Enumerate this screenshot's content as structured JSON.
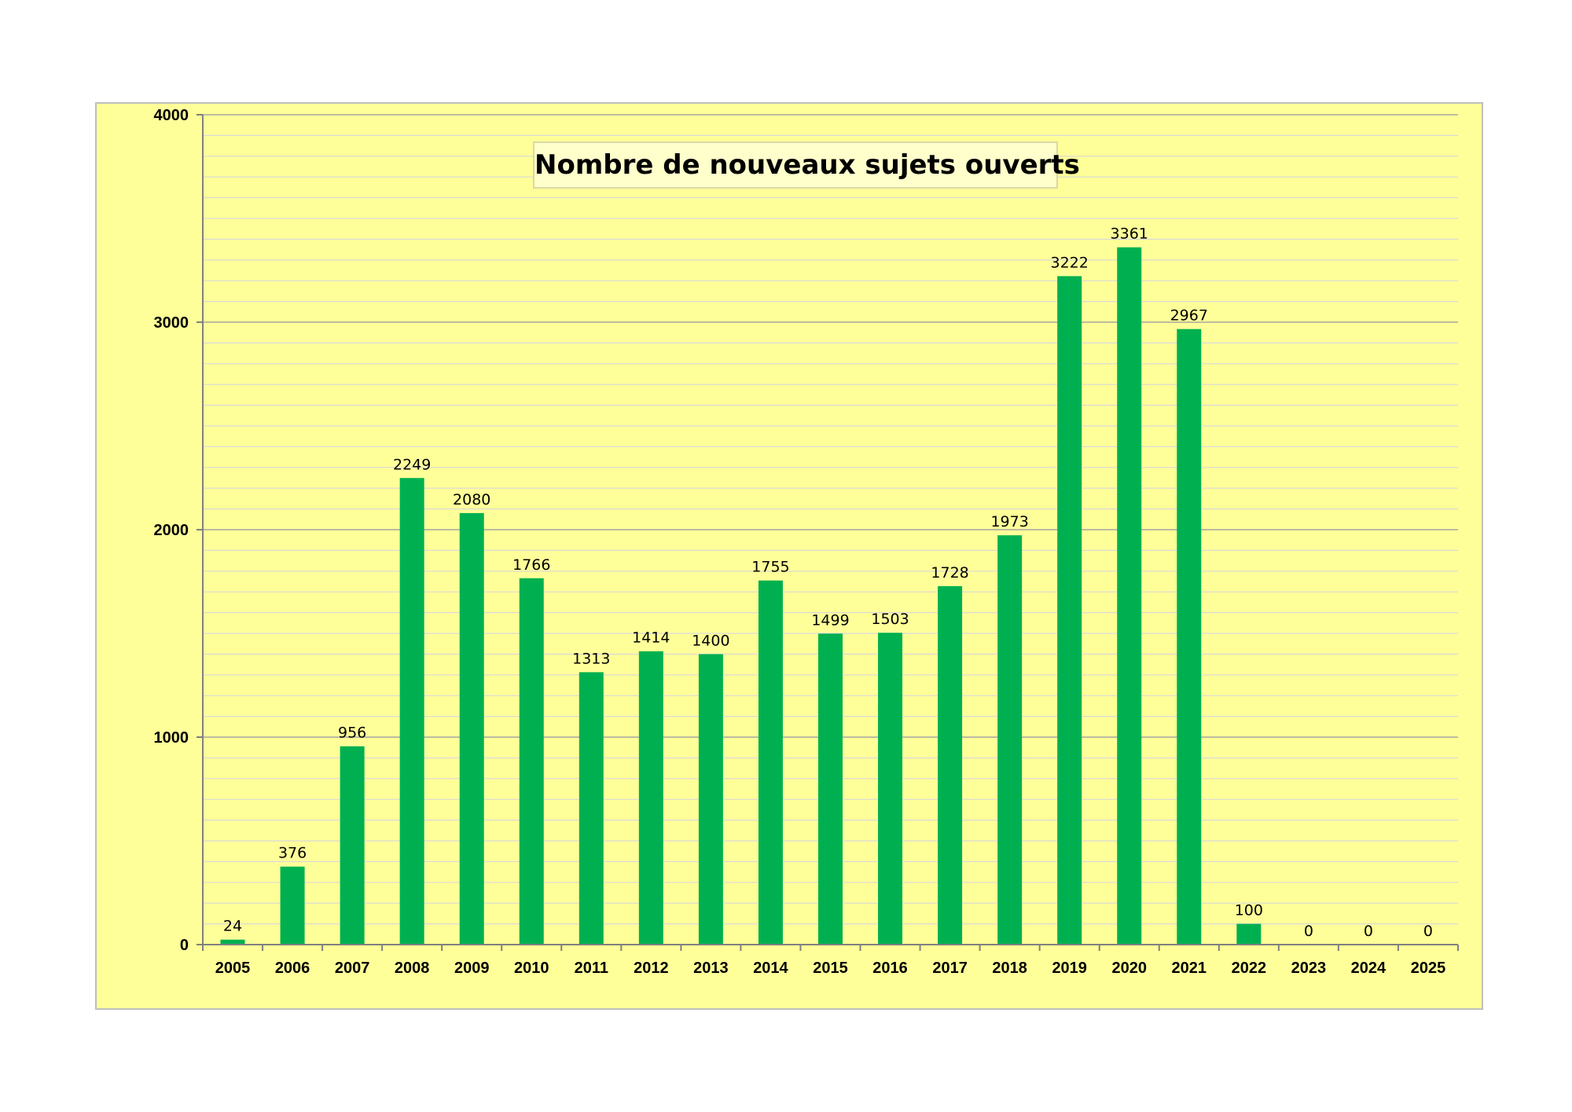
{
  "chart_data": {
    "type": "bar",
    "title": "Nombre de nouveaux sujets ouverts",
    "xlabel": "",
    "ylabel": "",
    "categories": [
      "2005",
      "2006",
      "2007",
      "2008",
      "2009",
      "2010",
      "2011",
      "2012",
      "2013",
      "2014",
      "2015",
      "2016",
      "2017",
      "2018",
      "2019",
      "2020",
      "2021",
      "2022",
      "2023",
      "2024",
      "2025"
    ],
    "values": [
      24,
      376,
      956,
      2249,
      2080,
      1766,
      1313,
      1414,
      1400,
      1755,
      1499,
      1503,
      1728,
      1973,
      3222,
      3361,
      2967,
      100,
      0,
      0,
      0
    ],
    "ylim": [
      0,
      4000
    ],
    "yticks": [
      0,
      1000,
      2000,
      3000,
      4000
    ],
    "minor_grid_step": 100,
    "grid": true,
    "legend": "none",
    "data_labels": true,
    "colors": {
      "bar": "#00b050",
      "plot_background": "#ffff99",
      "title_background": "#ffffcc",
      "major_grid": "#a6a6a6",
      "minor_grid": "#d9d9d9"
    }
  }
}
